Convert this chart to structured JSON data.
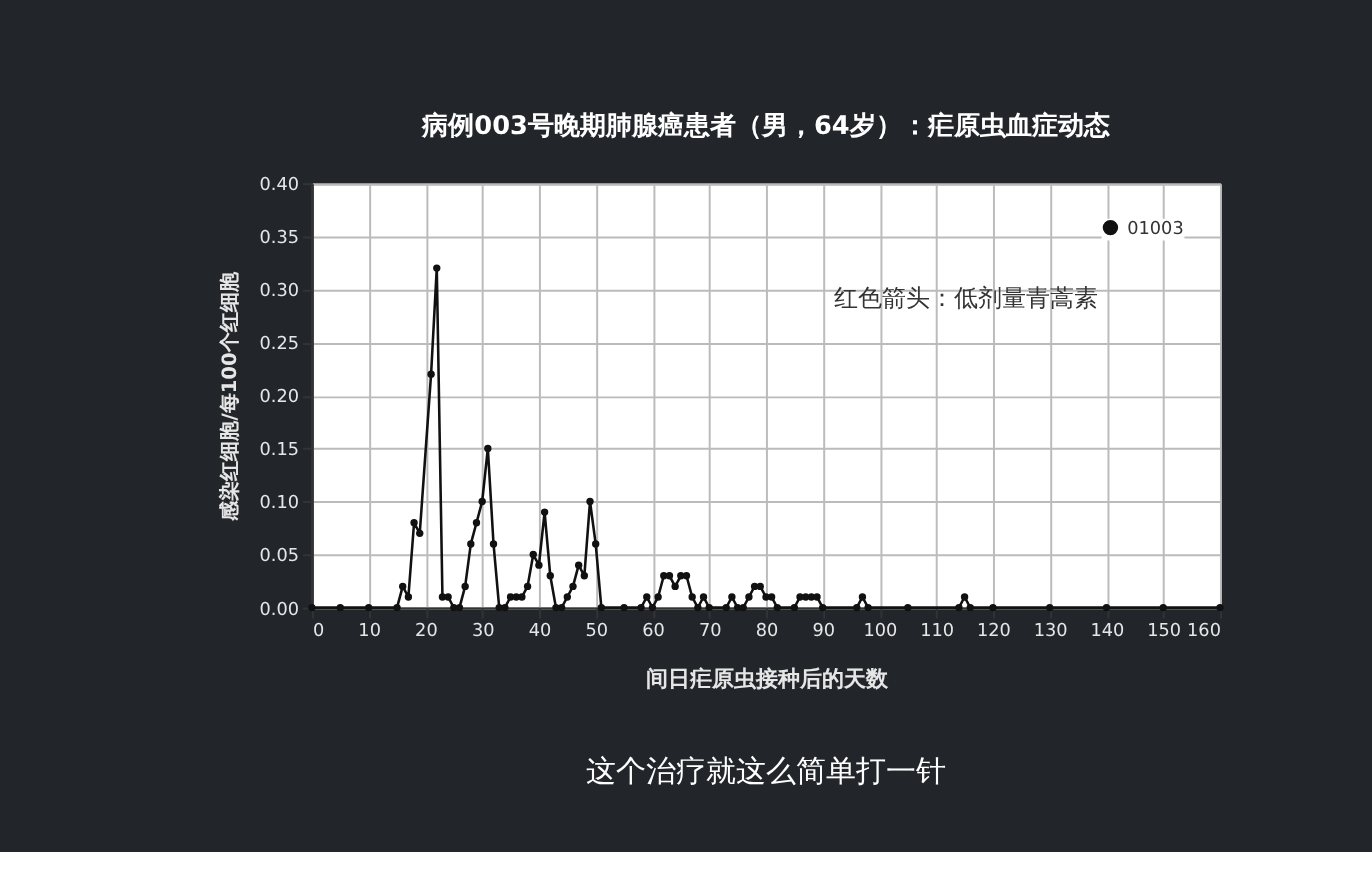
{
  "chart_data": {
    "type": "line",
    "title": "病例003号晚期肺腺癌患者（男，64岁）：疟原虫血症动态",
    "xlabel": "间日疟原虫接种后的天数",
    "ylabel": "感染红细胞/每100个红细胞",
    "annotations": [
      "红色箭头：低剂量青蒿素",
      "这个治疗就这么简单打一针"
    ],
    "x": [
      0,
      5,
      10,
      15,
      16,
      17,
      18,
      19,
      21,
      22,
      23,
      24,
      25,
      26,
      27,
      28,
      29,
      30,
      31,
      32,
      33,
      34,
      35,
      36,
      37,
      38,
      39,
      40,
      41,
      42,
      43,
      44,
      45,
      46,
      47,
      48,
      49,
      50,
      51,
      55,
      58,
      59,
      60,
      61,
      62,
      63,
      64,
      65,
      66,
      67,
      68,
      69,
      70,
      73,
      74,
      75,
      76,
      77,
      78,
      79,
      80,
      81,
      82,
      85,
      86,
      87,
      88,
      89,
      90,
      96,
      97,
      98,
      105,
      114,
      115,
      116,
      120,
      130,
      140,
      150,
      160
    ],
    "series": [
      {
        "name": "01003",
        "color": "#111111",
        "values": [
          0,
          0,
          0,
          0,
          0.02,
          0.01,
          0.08,
          0.07,
          0.22,
          0.32,
          0.01,
          0.01,
          0,
          0,
          0.02,
          0.06,
          0.08,
          0.1,
          0.15,
          0.06,
          0,
          0,
          0.01,
          0.01,
          0.01,
          0.02,
          0.05,
          0.04,
          0.09,
          0.03,
          0,
          0,
          0.01,
          0.02,
          0.04,
          0.03,
          0.1,
          0.06,
          0,
          0,
          0,
          0.01,
          0,
          0.01,
          0.03,
          0.03,
          0.02,
          0.03,
          0.03,
          0.01,
          0,
          0.01,
          0,
          0,
          0.01,
          0,
          0,
          0.01,
          0.02,
          0.02,
          0.01,
          0.01,
          0,
          0,
          0.01,
          0.01,
          0.01,
          0.01,
          0,
          0,
          0.01,
          0,
          0,
          0,
          0.01,
          0,
          0,
          0,
          0,
          0,
          0
        ]
      }
    ],
    "xlim": [
      0,
      160
    ],
    "xticks": [
      0,
      10,
      20,
      30,
      40,
      50,
      60,
      70,
      80,
      90,
      100,
      110,
      120,
      130,
      140,
      150,
      160
    ],
    "ylim": [
      0,
      0.4
    ],
    "yticks": [
      {
        "value": 0,
        "label": "0.00"
      },
      {
        "value": 0.05,
        "label": "0.05"
      },
      {
        "value": 0.1,
        "label": "0.10"
      },
      {
        "value": 0.15,
        "label": "0.15"
      },
      {
        "value": 0.2,
        "label": "0.20"
      },
      {
        "value": 0.25,
        "label": "0.25"
      },
      {
        "value": 0.3,
        "label": "0.30"
      },
      {
        "value": 0.35,
        "label": "0.35"
      },
      {
        "value": 0.4,
        "label": "0.40"
      }
    ],
    "grid": true,
    "legend": "top right",
    "marker": "circle",
    "line_style": "solid"
  }
}
